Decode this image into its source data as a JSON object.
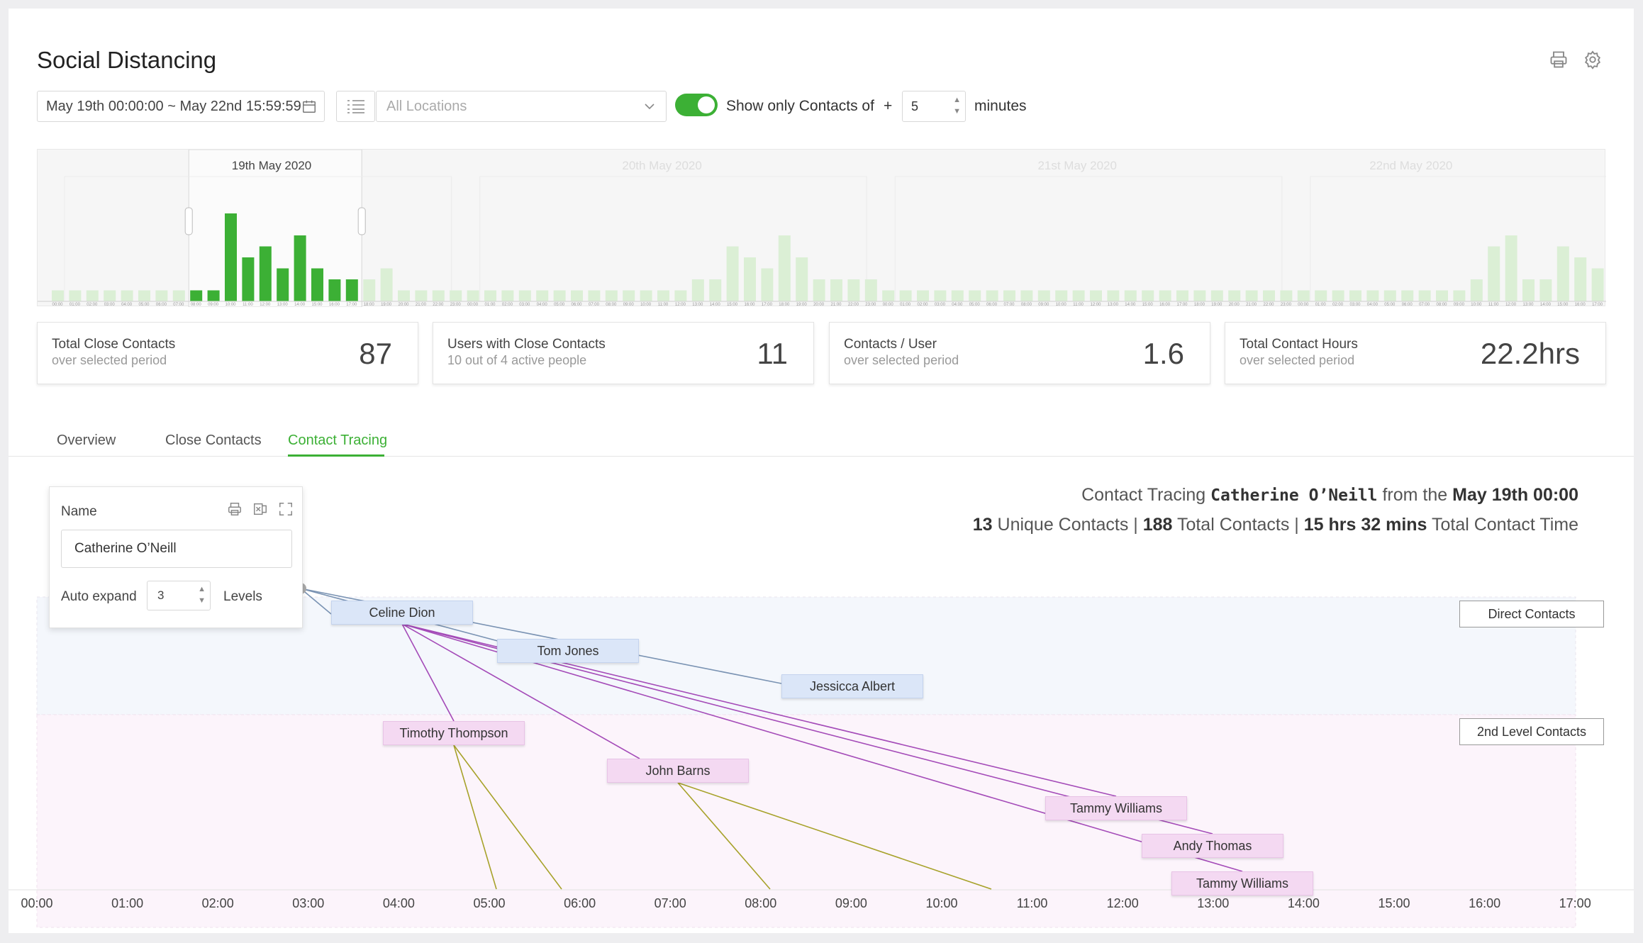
{
  "page": {
    "title": "Social Distancing",
    "print_icon": "printer-icon",
    "settings_icon": "gear-icon"
  },
  "filters": {
    "date_range": "May 19th 00:00:00  ~ May 22nd 15:59:59",
    "location_placeholder": "All Locations",
    "toggle_on": true,
    "show_only_label": "Show only Contacts of",
    "plus_sign": "+",
    "minutes_value": "5",
    "minutes_label": "minutes"
  },
  "timeline": {
    "days": [
      "19th May 2020",
      "20th May 2020",
      "21st May 2020",
      "22nd May 2020"
    ],
    "hour_ticks": [
      "00:00",
      "01:00",
      "02:00",
      "03:00",
      "04:00",
      "05:00",
      "06:00",
      "07:00",
      "08:00",
      "09:00",
      "10:00",
      "11:00",
      "12:00",
      "13:00",
      "14:00",
      "15:00",
      "16:00",
      "17:00",
      "18:00",
      "19:00",
      "20:00",
      "21:00",
      "22:00",
      "23:00"
    ],
    "selected_range": {
      "start_hour": 8,
      "end_hour": 18
    },
    "bars": [
      1,
      1,
      1,
      1,
      1,
      1,
      1,
      1,
      1,
      1,
      8,
      4,
      5,
      3,
      6,
      3,
      2,
      2,
      2,
      3,
      1,
      1,
      1,
      1,
      1,
      1,
      1,
      1,
      1,
      1,
      1,
      1,
      1,
      1,
      1,
      1,
      1,
      2,
      2,
      5,
      4,
      3,
      6,
      4,
      2,
      2,
      2,
      2,
      1,
      1,
      1,
      1,
      1,
      1,
      1,
      1,
      1,
      1,
      1,
      1,
      1,
      1,
      1,
      1,
      1,
      1,
      1,
      1,
      1,
      1,
      1,
      1,
      1,
      1,
      1,
      1,
      1,
      1,
      1,
      1,
      1,
      1,
      2,
      5,
      6,
      2,
      2,
      5,
      4,
      3,
      2,
      2,
      3,
      2,
      1,
      1,
      1,
      1,
      1,
      1,
      1,
      1,
      1,
      1,
      1,
      1,
      1,
      1,
      1,
      1,
      2,
      4,
      3,
      2,
      2,
      3,
      5,
      2,
      1
    ],
    "colors": {
      "selected": "#3cb035",
      "unselected": "#dbefd5"
    }
  },
  "stats": [
    {
      "title": "Total Close Contacts",
      "subtitle": "over selected period",
      "value": "87"
    },
    {
      "title": "Users with Close Contacts",
      "subtitle": "10 out of 4 active people",
      "value": "11"
    },
    {
      "title": "Contacts / User",
      "subtitle": "over selected period",
      "value": "1.6"
    },
    {
      "title": "Total Contact Hours",
      "subtitle": "over selected period",
      "value": "22.2hrs"
    }
  ],
  "tabs": {
    "overview": "Overview",
    "close_contacts": "Close Contacts",
    "contact_tracing": "Contact Tracing",
    "active": "contact_tracing"
  },
  "tracing": {
    "summary_prefix": "Contact Tracing ",
    "person": "Catherine O’Neill",
    "summary_mid": " from the ",
    "start": "May 19th 00:00",
    "unique_count": "13",
    "unique_label": " Unique Contacts | ",
    "total_count": "188",
    "total_label": " Total Contacts | ",
    "time_value": "15 hrs 32 mins",
    "time_label": " Total Contact Time"
  },
  "panel": {
    "name_label": "Name",
    "name_value": "Catherine O’Neill",
    "auto_expand_label": "Auto expand",
    "levels_value": "3",
    "levels_label": "Levels",
    "print_icon": "printer-icon",
    "excel_icon": "excel-icon",
    "expand_icon": "expand-icon"
  },
  "graph": {
    "level_buttons": {
      "direct": "Direct Contacts",
      "second": "2nd Level Contacts"
    },
    "axis_ticks": [
      "00:00",
      "01:00",
      "02:00",
      "03:00",
      "04:00",
      "05:00",
      "06:00",
      "07:00",
      "08:00",
      "09:00",
      "10:00",
      "11:00",
      "12:00",
      "13:00",
      "14:00",
      "15:00",
      "16:00",
      "17:00"
    ],
    "nodes": {
      "celine": "Celine Dion",
      "tom": "Tom Jones",
      "jessica": "Jessicca Albert",
      "timothy": "Timothy Thompson",
      "john": "John Barns",
      "tammy1": "Tammy Williams",
      "andy": "Andy Thomas",
      "tammy2": "Tammy Williams"
    },
    "colors": {
      "direct_band": "#f4f7fc",
      "second_band": "#fcf4fb",
      "direct_link": "#7a93b3",
      "second_link": "#a44bb8",
      "third_link": "#a7a22a"
    }
  }
}
